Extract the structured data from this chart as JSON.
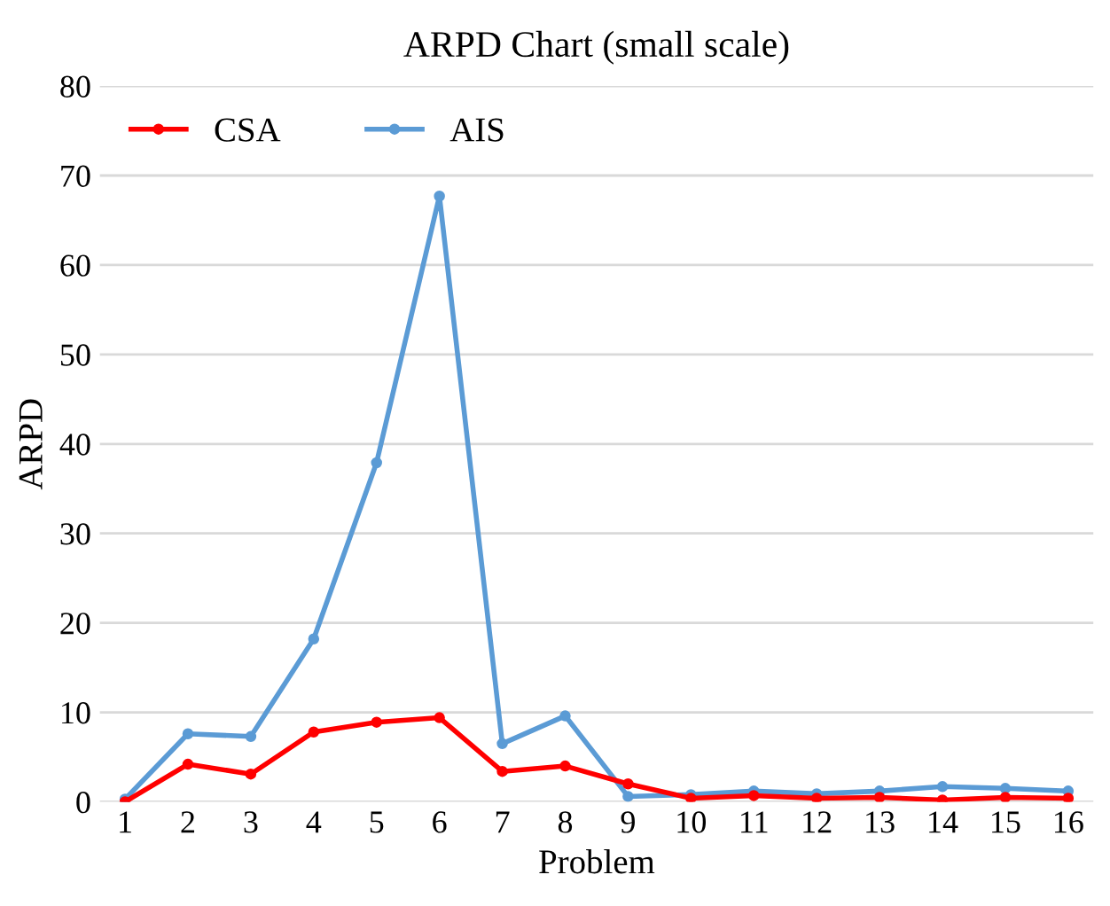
{
  "chart_data": {
    "type": "line",
    "title": "ARPD Chart (small scale)",
    "xlabel": "Problem",
    "ylabel": "ARPD",
    "categories": [
      "1",
      "2",
      "3",
      "4",
      "5",
      "6",
      "7",
      "8",
      "9",
      "10",
      "11",
      "12",
      "13",
      "14",
      "15",
      "16"
    ],
    "series": [
      {
        "name": "CSA",
        "color": "#ff0000",
        "values": [
          0,
          4.2,
          3.1,
          7.8,
          8.9,
          9.4,
          3.4,
          4.0,
          2.0,
          0.4,
          0.7,
          0.4,
          0.5,
          0.2,
          0.5,
          0.4
        ]
      },
      {
        "name": "AIS",
        "color": "#5b9bd5",
        "values": [
          0.3,
          7.6,
          7.3,
          18.2,
          37.9,
          67.7,
          6.5,
          9.6,
          0.6,
          0.8,
          1.2,
          0.9,
          1.2,
          1.7,
          1.5,
          1.2
        ]
      }
    ],
    "ylim": [
      0,
      80
    ],
    "yticks": [
      0,
      10,
      20,
      30,
      40,
      50,
      60,
      70,
      80
    ],
    "grid": "y",
    "legend": "top left",
    "marker": "circle",
    "line_style": "solid"
  }
}
